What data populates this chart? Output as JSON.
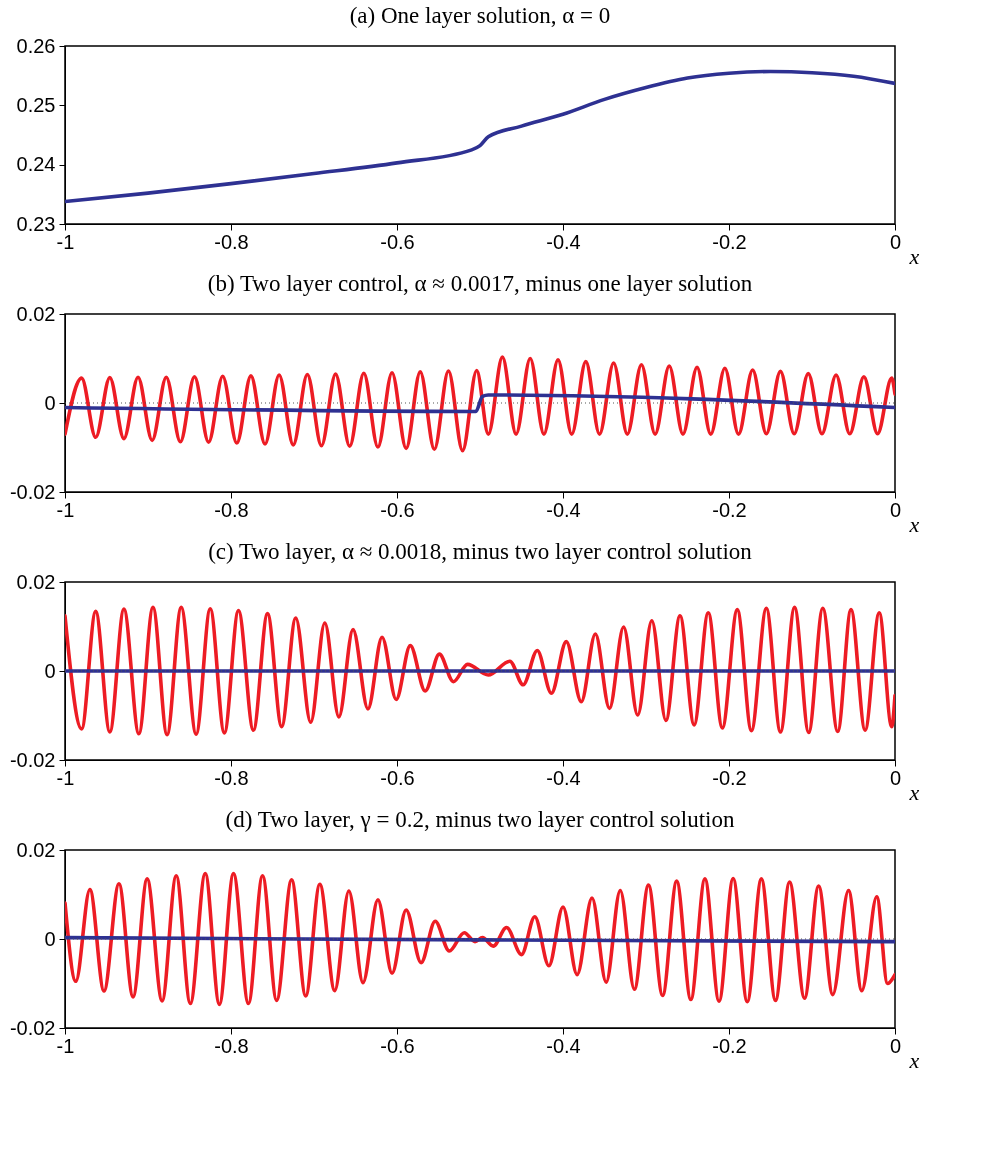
{
  "chart_data": [
    {
      "type": "line",
      "title": "(a) One layer solution, α = 0",
      "xlabel": "x",
      "xlim": [
        -1,
        0
      ],
      "xticks": [
        -1,
        -0.8,
        -0.6,
        -0.4,
        -0.2,
        0
      ],
      "ylim": [
        0.23,
        0.26
      ],
      "yticks": [
        0.23,
        0.24,
        0.25,
        0.26
      ],
      "series": [
        {
          "color": "#2e3192",
          "x": [
            -1,
            -0.9,
            -0.8,
            -0.7,
            -0.6,
            -0.51,
            -0.5,
            -0.49,
            -0.45,
            -0.4,
            -0.35,
            -0.3,
            -0.25,
            -0.2,
            -0.15,
            -0.1,
            -0.05,
            0
          ],
          "values": [
            0.2338,
            0.2352,
            0.2368,
            0.2385,
            0.2403,
            0.2425,
            0.2432,
            0.2447,
            0.2465,
            0.2485,
            0.251,
            0.253,
            0.2546,
            0.2554,
            0.2557,
            0.2555,
            0.2549,
            0.2537
          ]
        }
      ]
    },
    {
      "type": "line",
      "title": "(b) Two layer control, α ≈ 0.0017, minus one layer solution",
      "xlabel": "x",
      "xlim": [
        -1,
        0
      ],
      "xticks": [
        -1,
        -0.8,
        -0.6,
        -0.4,
        -0.2,
        0
      ],
      "ylim": [
        -0.02,
        0.02
      ],
      "yticks": [
        -0.02,
        0,
        0.02
      ],
      "ref_lines": [
        {
          "axis": "y",
          "value": 0,
          "line_style": "dotted",
          "color": "#555555"
        }
      ],
      "series": [
        {
          "color": "#ed1c24",
          "x": [
            -1,
            -0.98,
            -0.963,
            -0.946,
            -0.929,
            -0.912,
            -0.895,
            -0.878,
            -0.861,
            -0.844,
            -0.827,
            -0.81,
            -0.793,
            -0.776,
            -0.759,
            -0.742,
            -0.725,
            -0.708,
            -0.691,
            -0.674,
            -0.657,
            -0.64,
            -0.623,
            -0.606,
            -0.589,
            -0.572,
            -0.555,
            -0.538,
            -0.521,
            -0.504,
            -0.49,
            -0.473,
            -0.4565,
            -0.4395,
            -0.423,
            -0.406,
            -0.3895,
            -0.3725,
            -0.356,
            -0.339,
            -0.3225,
            -0.3055,
            -0.289,
            -0.272,
            -0.2555,
            -0.2385,
            -0.222,
            -0.205,
            -0.1885,
            -0.1715,
            -0.155,
            -0.138,
            -0.1215,
            -0.1045,
            -0.088,
            -0.071,
            -0.0545,
            -0.0375,
            -0.021,
            -0.004,
            0
          ],
          "values": [
            -0.007,
            0.0056,
            -0.0077,
            0.0057,
            -0.008,
            0.0058,
            -0.0084,
            0.0058,
            -0.0087,
            0.0059,
            -0.0088,
            0.006,
            -0.009,
            0.0061,
            -0.0092,
            0.0063,
            -0.0094,
            0.0064,
            -0.0096,
            0.0065,
            -0.0097,
            0.0067,
            -0.0099,
            0.0068,
            -0.0102,
            0.007,
            -0.0104,
            0.0072,
            -0.0107,
            0.0073,
            -0.007,
            0.0103,
            -0.007,
            0.01,
            -0.007,
            0.0097,
            -0.007,
            0.0093,
            -0.007,
            0.009,
            -0.007,
            0.0086,
            -0.007,
            0.0083,
            -0.007,
            0.008,
            -0.007,
            0.0078,
            -0.007,
            0.0074,
            -0.0069,
            0.0071,
            -0.0069,
            0.0066,
            -0.0069,
            0.0063,
            -0.0069,
            0.0059,
            -0.0069,
            0.0056,
            0.002
          ]
        },
        {
          "color": "#2e3192",
          "x": [
            -1,
            -0.505,
            -0.497,
            -0.49,
            0
          ],
          "values": [
            -0.001,
            -0.0019,
            0.0015,
            0.0018,
            -0.001
          ]
        }
      ]
    },
    {
      "type": "line",
      "title": "(c) Two layer, α ≈ 0.0018, minus two layer control solution",
      "xlabel": "x",
      "xlim": [
        -1,
        0
      ],
      "xticks": [
        -1,
        -0.8,
        -0.6,
        -0.4,
        -0.2,
        0
      ],
      "ylim": [
        -0.02,
        0.02
      ],
      "yticks": [
        -0.02,
        0,
        0.02
      ],
      "ref_lines": [
        {
          "axis": "y",
          "value": 0,
          "line_style": "dotted",
          "color": "#555555"
        }
      ],
      "series": [
        {
          "color": "#ed1c24",
          "x": [
            -1,
            -0.98,
            -0.963,
            -0.946,
            -0.929,
            -0.911,
            -0.894,
            -0.877,
            -0.86,
            -0.842,
            -0.825,
            -0.808,
            -0.791,
            -0.773,
            -0.756,
            -0.739,
            -0.722,
            -0.704,
            -0.687,
            -0.67,
            -0.653,
            -0.635,
            -0.618,
            -0.601,
            -0.584,
            -0.566,
            -0.549,
            -0.532,
            -0.515,
            -0.49,
            -0.464,
            -0.448,
            -0.431,
            -0.414,
            -0.396,
            -0.378,
            -0.361,
            -0.344,
            -0.327,
            -0.31,
            -0.293,
            -0.276,
            -0.259,
            -0.242,
            -0.225,
            -0.208,
            -0.19,
            -0.173,
            -0.155,
            -0.138,
            -0.121,
            -0.104,
            -0.087,
            -0.069,
            -0.053,
            -0.036,
            -0.019,
            -0.004,
            0
          ],
          "values": [
            0.0124,
            -0.013,
            0.0134,
            -0.0137,
            0.0139,
            -0.0141,
            0.0143,
            -0.0143,
            0.0143,
            -0.0142,
            0.014,
            -0.0139,
            0.0136,
            -0.0133,
            0.0129,
            -0.0125,
            0.0119,
            -0.0115,
            0.0108,
            -0.0103,
            0.0093,
            -0.0085,
            0.0076,
            -0.0064,
            0.0057,
            -0.0045,
            0.0038,
            -0.0024,
            0.0015,
            -0.0009,
            0.0022,
            -0.0031,
            0.0046,
            -0.005,
            0.0066,
            -0.0069,
            0.0083,
            -0.0084,
            0.0099,
            -0.0099,
            0.0113,
            -0.0111,
            0.0124,
            -0.0121,
            0.0131,
            -0.0128,
            0.0138,
            -0.0134,
            0.0141,
            -0.0137,
            0.0143,
            -0.0138,
            0.0141,
            -0.0136,
            0.0138,
            -0.0133,
            0.0131,
            -0.0125,
            -0.0055
          ]
        },
        {
          "color": "#2e3192",
          "x": [
            -1,
            -0.5,
            0
          ],
          "values": [
            0,
            0,
            0
          ]
        }
      ]
    },
    {
      "type": "line",
      "title": "(d) Two layer, γ = 0.2, minus two layer control solution",
      "xlabel": "x",
      "xlim": [
        -1,
        0
      ],
      "xticks": [
        -1,
        -0.8,
        -0.6,
        -0.4,
        -0.2,
        0
      ],
      "ylim": [
        -0.02,
        0.02
      ],
      "yticks": [
        -0.02,
        0,
        0.02
      ],
      "ref_lines": [
        {
          "axis": "y",
          "value": 0,
          "line_style": "dotted",
          "color": "#555555"
        }
      ],
      "series": [
        {
          "color": "#ed1c24",
          "x": [
            -1,
            -0.987,
            -0.97,
            -0.953,
            -0.935,
            -0.918,
            -0.901,
            -0.883,
            -0.866,
            -0.849,
            -0.831,
            -0.814,
            -0.797,
            -0.779,
            -0.762,
            -0.745,
            -0.727,
            -0.71,
            -0.693,
            -0.675,
            -0.658,
            -0.641,
            -0.623,
            -0.606,
            -0.589,
            -0.571,
            -0.554,
            -0.537,
            -0.519,
            -0.506,
            -0.497,
            -0.484,
            -0.468,
            -0.45,
            -0.434,
            -0.417,
            -0.4,
            -0.383,
            -0.365,
            -0.348,
            -0.331,
            -0.314,
            -0.297,
            -0.28,
            -0.263,
            -0.246,
            -0.229,
            -0.212,
            -0.195,
            -0.178,
            -0.161,
            -0.144,
            -0.127,
            -0.109,
            -0.092,
            -0.075,
            -0.056,
            -0.04,
            -0.022,
            -0.009,
            0
          ],
          "values": [
            0.0081,
            -0.0095,
            0.0111,
            -0.0117,
            0.0124,
            -0.013,
            0.0135,
            -0.0139,
            0.0142,
            -0.0145,
            0.0147,
            -0.0147,
            0.0147,
            -0.0145,
            0.0142,
            -0.0138,
            0.0133,
            -0.0128,
            0.0123,
            -0.0116,
            0.0108,
            -0.0098,
            0.0088,
            -0.0077,
            0.0065,
            -0.0053,
            0.004,
            -0.0027,
            0.0014,
            -0.0006,
            0.0003,
            -0.0016,
            0.0026,
            -0.0035,
            0.005,
            -0.006,
            0.0072,
            -0.008,
            0.0092,
            -0.0097,
            0.0109,
            -0.0113,
            0.0121,
            -0.0127,
            0.013,
            -0.0136,
            0.0135,
            -0.014,
            0.0136,
            -0.0141,
            0.0135,
            -0.0138,
            0.0128,
            -0.0133,
            0.0119,
            -0.0125,
            0.0109,
            -0.0116,
            0.0095,
            -0.01,
            -0.008
          ]
        },
        {
          "color": "#2e3192",
          "x": [
            -1,
            -0.5,
            0
          ],
          "values": [
            0.0003,
            -0.0002,
            -0.0006
          ]
        }
      ]
    }
  ]
}
